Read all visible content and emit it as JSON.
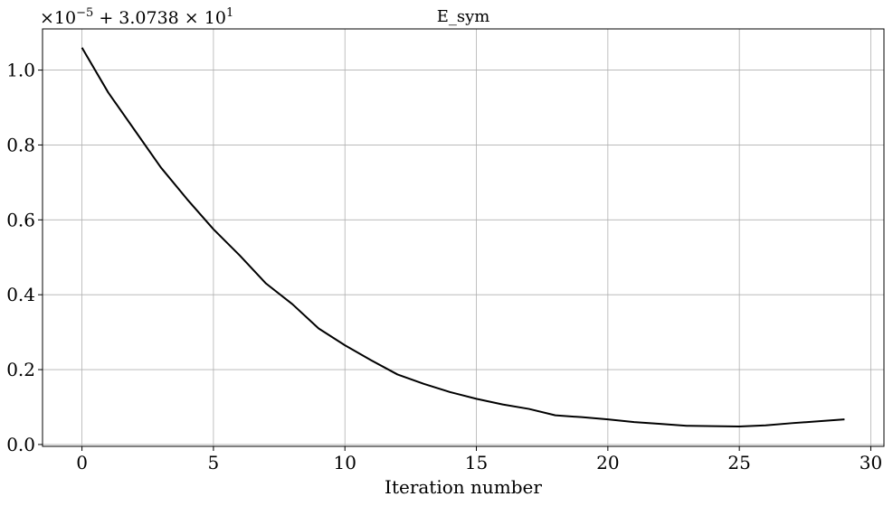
{
  "chart_data": {
    "type": "line",
    "title": "E_sym",
    "xlabel": "Iteration number",
    "ylabel": "",
    "offset_label": {
      "prefix": "×10",
      "exponent": "−5",
      "middle": " + 3.0738 × 10",
      "exponent2": "1"
    },
    "xlim": [
      -1.5,
      30.5
    ],
    "ylim": [
      -0.005,
      1.11
    ],
    "xticks": [
      0,
      5,
      10,
      15,
      20,
      25,
      30
    ],
    "xtick_labels": [
      "0",
      "5",
      "10",
      "15",
      "20",
      "25",
      "30"
    ],
    "yticks": [
      0.0,
      0.2,
      0.4,
      0.6,
      0.8,
      1.0
    ],
    "ytick_labels": [
      "0.0",
      "0.2",
      "0.4",
      "0.6",
      "0.8",
      "1.0"
    ],
    "grid": true,
    "series": [
      {
        "color": "#000000",
        "x": [
          0,
          1,
          2,
          3,
          4,
          5,
          6,
          7,
          8,
          9,
          10,
          11,
          12,
          13,
          14,
          15,
          16,
          17,
          18,
          19,
          20,
          21,
          22,
          23,
          24,
          25,
          26,
          27,
          28,
          29
        ],
        "y": [
          1.06,
          0.94,
          0.84,
          0.74,
          0.655,
          0.575,
          0.505,
          0.43,
          0.375,
          0.31,
          0.265,
          0.225,
          0.187,
          0.162,
          0.14,
          0.122,
          0.107,
          0.095,
          0.078,
          0.073,
          0.067,
          0.06,
          0.055,
          0.05,
          0.049,
          0.048,
          0.051,
          0.057,
          0.062,
          0.067
        ]
      }
    ]
  }
}
